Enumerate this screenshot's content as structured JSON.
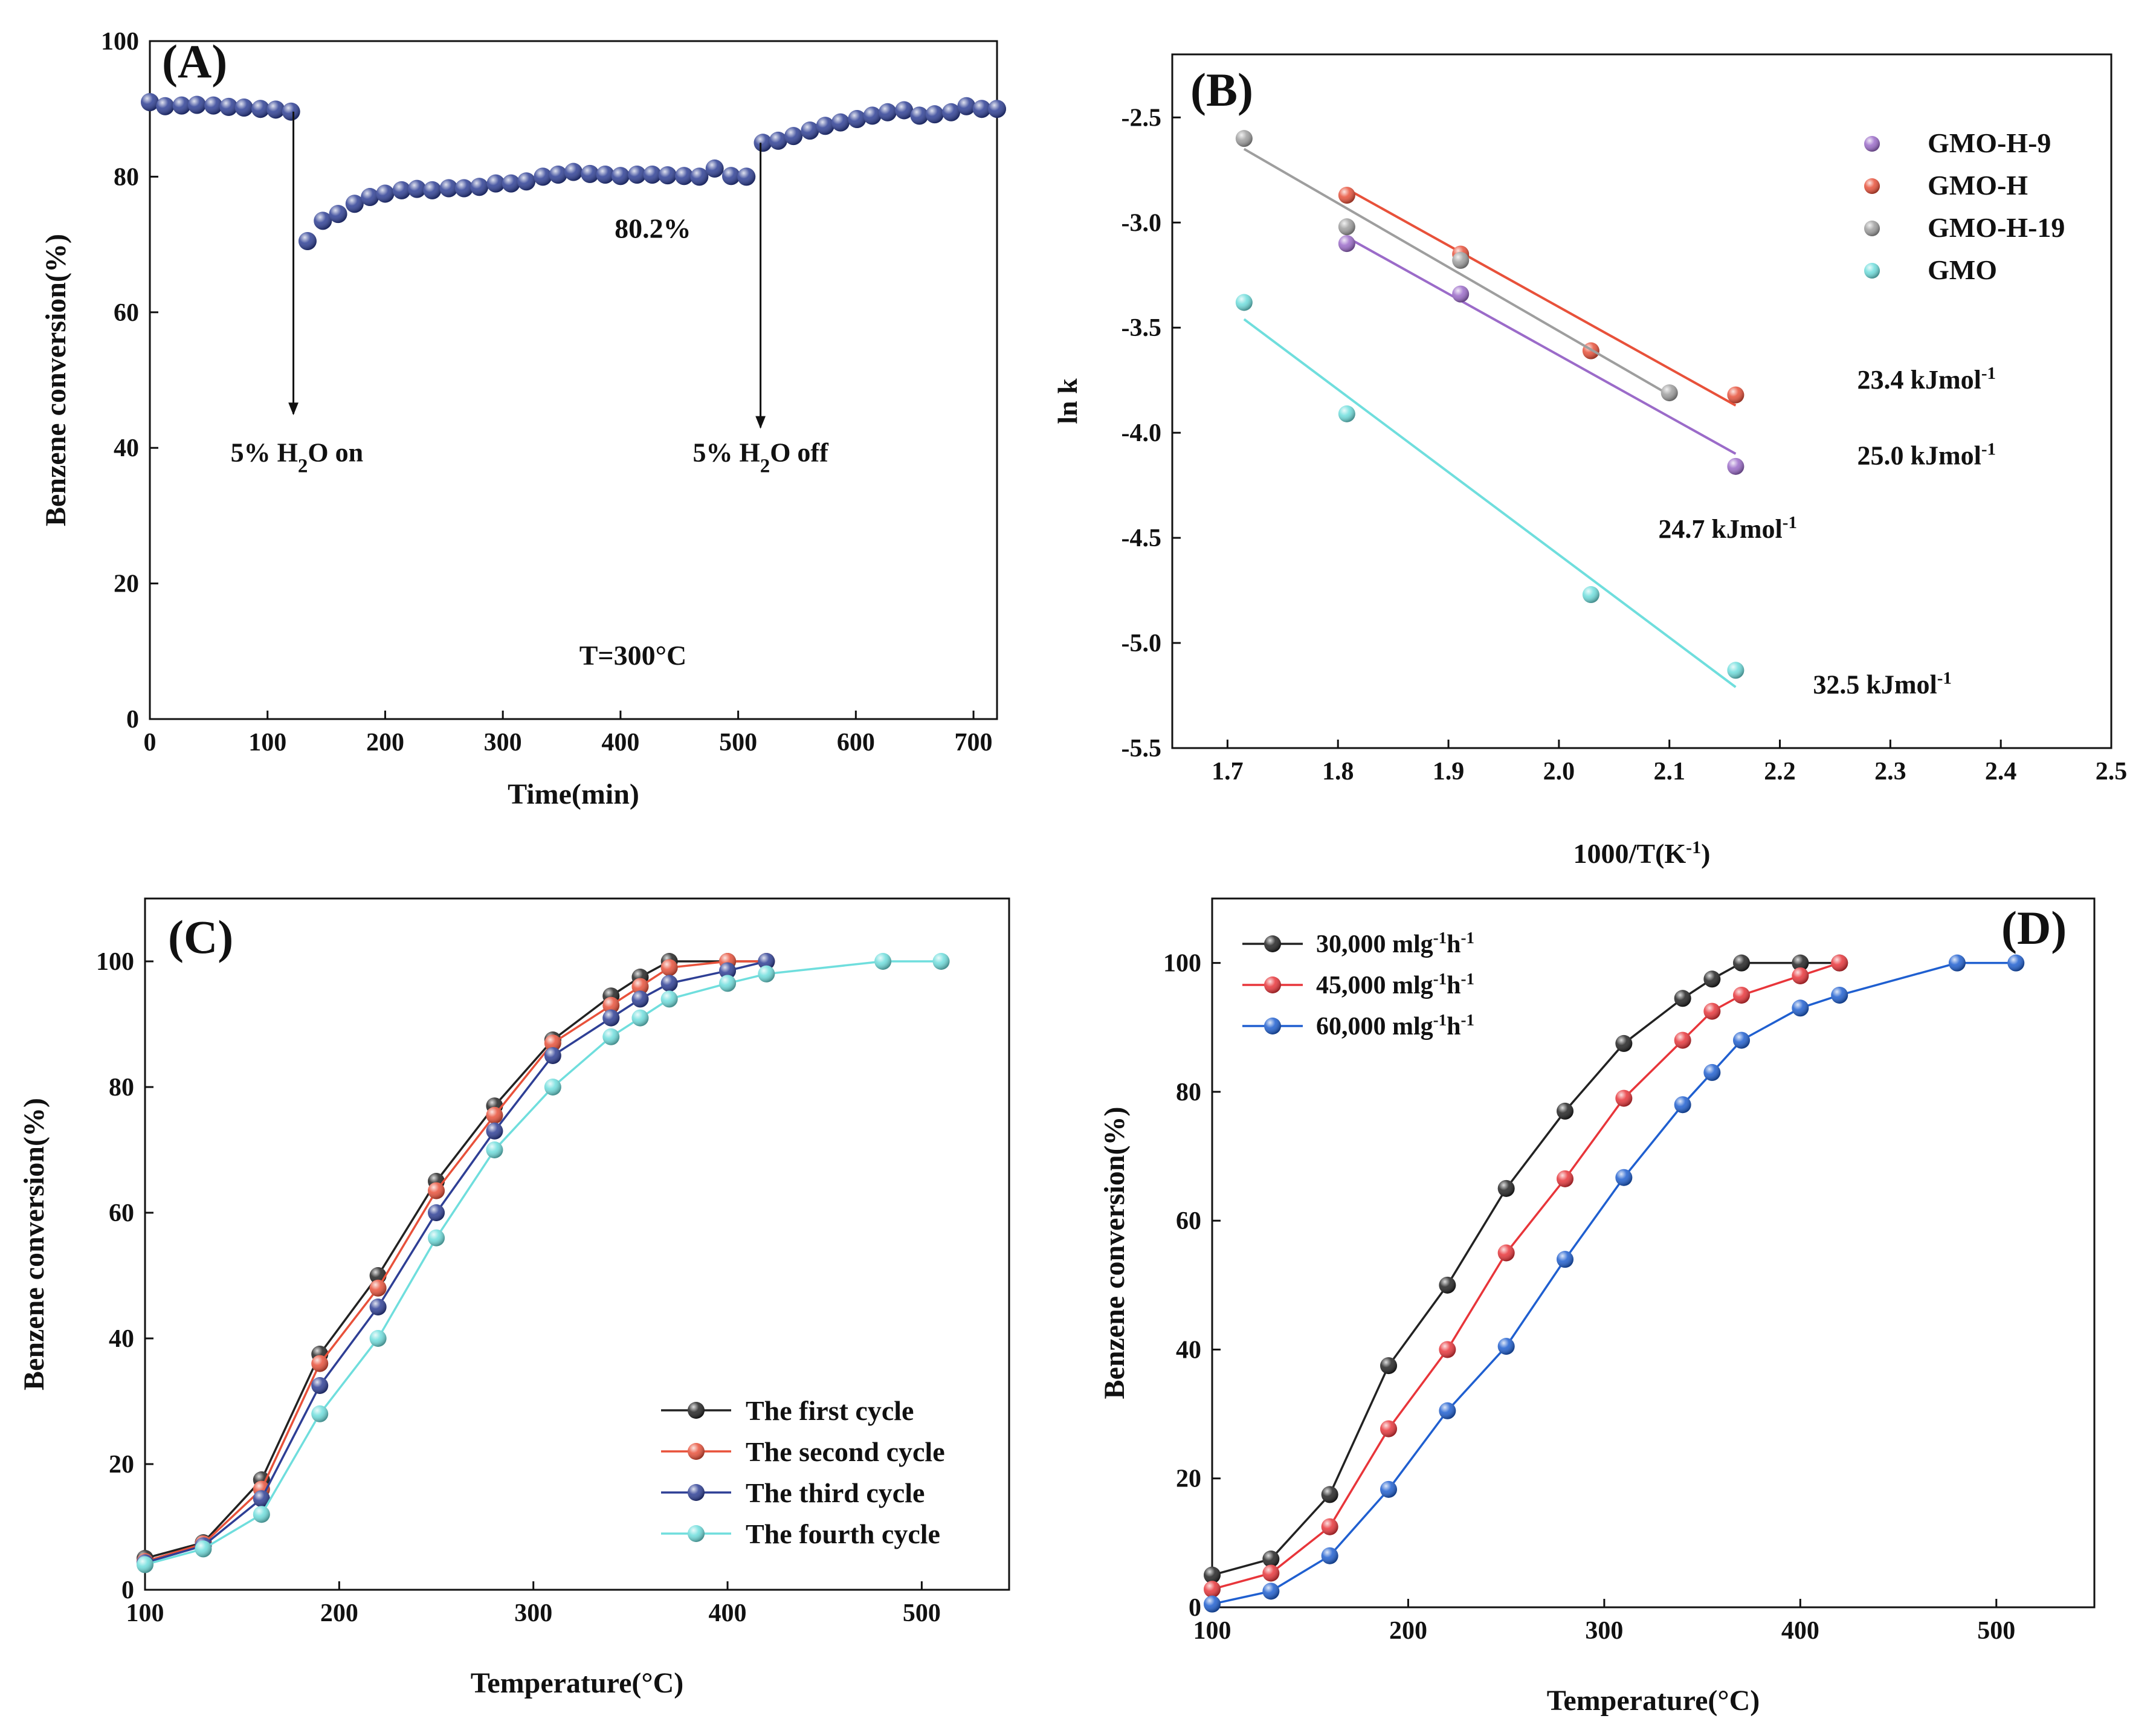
{
  "figure": {
    "panels": [
      "A",
      "B",
      "C",
      "D"
    ]
  },
  "chart_data": [
    {
      "id": "A",
      "type": "scatter",
      "panel_label": "(A)",
      "xlabel": "Time(min)",
      "ylabel": "Benzene conversion(%)",
      "xlim": [
        0,
        720
      ],
      "ylim": [
        0,
        100
      ],
      "xticks": [
        0,
        100,
        200,
        300,
        400,
        500,
        600,
        700
      ],
      "yticks": [
        0,
        20,
        40,
        60,
        80,
        100
      ],
      "marker_color": "#2e3f95",
      "series": [
        {
          "name": "Benzene conversion",
          "x": [
            0,
            13,
            27,
            40,
            54,
            67,
            80,
            94,
            107,
            120,
            134,
            147,
            160,
            174,
            187,
            200,
            214,
            227,
            240,
            254,
            267,
            280,
            294,
            307,
            320,
            334,
            347,
            360,
            374,
            387,
            400,
            414,
            427,
            440,
            454,
            467,
            480,
            494,
            507,
            521,
            534,
            547,
            561,
            574,
            587,
            601,
            614,
            627,
            641,
            654,
            667,
            681,
            694,
            707,
            720
          ],
          "y": [
            91.0,
            90.4,
            90.5,
            90.6,
            90.5,
            90.3,
            90.2,
            90.0,
            89.9,
            89.6,
            70.5,
            73.5,
            74.5,
            76.0,
            77.0,
            77.5,
            78.0,
            78.2,
            78.0,
            78.3,
            78.3,
            78.5,
            79.0,
            79.0,
            79.3,
            80.0,
            80.3,
            80.7,
            80.4,
            80.3,
            80.1,
            80.3,
            80.3,
            80.2,
            80.1,
            80.0,
            81.2,
            80.1,
            80.0,
            85.0,
            85.3,
            86.0,
            86.8,
            87.5,
            88.0,
            88.5,
            89.0,
            89.5,
            89.8,
            89.0,
            89.2,
            89.5,
            90.4,
            90.0,
            90.0
          ]
        }
      ],
      "annotations": [
        {
          "id": "on",
          "text_pre": "5% H",
          "sub": "2",
          "text_post": "O on",
          "arrow_x": 122,
          "arrow_from_y": 89.6,
          "arrow_to_y": 45,
          "label_x": 125,
          "label_y": 38
        },
        {
          "id": "off",
          "text_pre": "5% H",
          "sub": "2",
          "text_post": "O off",
          "arrow_x": 519,
          "arrow_from_y": 85.0,
          "arrow_to_y": 43,
          "label_x": 519,
          "label_y": 38
        },
        {
          "id": "mean",
          "text": "80.2%",
          "x": 395,
          "y": 71,
          "color": "#2e3f95"
        },
        {
          "id": "temp",
          "text": "T=300°C",
          "x": 365,
          "y": 8
        }
      ]
    },
    {
      "id": "B",
      "type": "scatter",
      "panel_label": "(B)",
      "xlabel_pre": "1000/T(K",
      "xlabel_sup": "-1",
      "xlabel_post": ")",
      "ylabel": "ln k",
      "xlim": [
        1.65,
        2.5
      ],
      "ylim": [
        -5.5,
        -2.2
      ],
      "xticks": [
        1.7,
        1.8,
        1.9,
        2.0,
        2.1,
        2.2,
        2.3,
        2.4,
        2.5
      ],
      "yticks": [
        -5.5,
        -5.0,
        -4.5,
        -4.0,
        -3.5,
        -3.0,
        -2.5
      ],
      "series": [
        {
          "name": "GMO-H-9",
          "color": "#9b6bc9",
          "x": [
            1.808,
            1.911,
            2.16
          ],
          "y": [
            -3.1,
            -3.34,
            -4.16
          ],
          "fit": [
            [
              1.808,
              -3.07
            ],
            [
              2.16,
              -4.1
            ]
          ],
          "ea_pre": "24.7 kJmol",
          "ea_sup": "-1",
          "ea_x": 2.09,
          "ea_y": -4.5
        },
        {
          "name": "GMO-H",
          "color": "#e8513a",
          "x": [
            1.808,
            1.911,
            2.029,
            2.16
          ],
          "y": [
            -2.87,
            -3.15,
            -3.61,
            -3.82
          ],
          "fit": [
            [
              1.808,
              -2.84
            ],
            [
              2.16,
              -3.87
            ]
          ],
          "ea_pre": "23.4 kJmol",
          "ea_sup": "-1",
          "ea_x": 2.27,
          "ea_y": -3.79
        },
        {
          "name": "GMO-H-19",
          "color": "#9e9e9e",
          "x": [
            1.715,
            1.808,
            1.911,
            2.1
          ],
          "y": [
            -2.6,
            -3.02,
            -3.18,
            -3.81
          ],
          "fit": [
            [
              1.715,
              -2.65
            ],
            [
              2.1,
              -3.82
            ]
          ],
          "ea_pre": "25.0 kJmol",
          "ea_sup": "-1",
          "ea_x": 2.27,
          "ea_y": -4.15
        },
        {
          "name": "GMO",
          "color": "#6fdedd",
          "x": [
            1.715,
            1.808,
            2.029,
            2.16
          ],
          "y": [
            -3.38,
            -3.91,
            -4.77,
            -5.13
          ],
          "fit": [
            [
              1.715,
              -3.46
            ],
            [
              2.16,
              -5.21
            ]
          ],
          "ea_pre": "32.5 kJmol",
          "ea_sup": "-1",
          "ea_x": 2.23,
          "ea_y": -5.24
        }
      ],
      "legend": "top-right"
    },
    {
      "id": "C",
      "type": "line",
      "panel_label": "(C)",
      "xlabel": "Temperature(°C)",
      "ylabel": "Benzene conversion(%)",
      "xlim": [
        100,
        545
      ],
      "ylim": [
        0,
        110
      ],
      "xticks": [
        100,
        200,
        300,
        400,
        500
      ],
      "yticks": [
        0,
        20,
        40,
        60,
        80,
        100
      ],
      "series": [
        {
          "name": "The first cycle",
          "color": "#222222",
          "x": [
            100,
            130,
            160,
            190,
            220,
            250,
            280,
            310,
            340,
            355,
            370,
            400,
            420
          ],
          "y": [
            5,
            7.5,
            17.5,
            37.5,
            50,
            65,
            77,
            87.5,
            94.5,
            97.5,
            100,
            100,
            100
          ]
        },
        {
          "name": "The second cycle",
          "color": "#e8513a",
          "x": [
            100,
            130,
            160,
            190,
            220,
            250,
            280,
            310,
            340,
            355,
            370,
            400,
            420
          ],
          "y": [
            4.5,
            7.3,
            16,
            36,
            48,
            63.5,
            75.5,
            87,
            93,
            96,
            99,
            100,
            100
          ]
        },
        {
          "name": "The third cycle",
          "color": "#2e3f95",
          "x": [
            100,
            130,
            160,
            190,
            220,
            250,
            280,
            310,
            340,
            355,
            370,
            400,
            420
          ],
          "y": [
            4.3,
            7,
            14.5,
            32.5,
            45,
            60,
            73,
            85,
            91,
            94,
            96.5,
            98.5,
            100
          ]
        },
        {
          "name": "The fourth cycle",
          "color": "#6fdedd",
          "x": [
            100,
            130,
            160,
            190,
            220,
            250,
            280,
            310,
            340,
            355,
            370,
            400,
            420,
            480,
            510
          ],
          "y": [
            4,
            6.5,
            12,
            28,
            40,
            56,
            70,
            80,
            88,
            91,
            94,
            96.5,
            98,
            100,
            100
          ]
        }
      ],
      "legend": "bottom-right"
    },
    {
      "id": "D",
      "type": "line",
      "panel_label": "(D)",
      "xlabel": "Temperature(°C)",
      "ylabel": "Benzene conversion(%)",
      "xlim": [
        100,
        550
      ],
      "ylim": [
        0,
        110
      ],
      "xticks": [
        100,
        200,
        300,
        400,
        500
      ],
      "yticks": [
        0,
        20,
        40,
        60,
        80,
        100
      ],
      "series": [
        {
          "name_pre": "30,000 mlg",
          "name_sup1": "-1",
          "name_mid": "h",
          "name_sup2": "-1",
          "color": "#222222",
          "x": [
            100,
            130,
            160,
            190,
            220,
            250,
            280,
            310,
            340,
            355,
            370,
            400,
            420
          ],
          "y": [
            5,
            7.5,
            17.5,
            37.5,
            50,
            65,
            77,
            87.5,
            94.5,
            97.5,
            100,
            100,
            100
          ]
        },
        {
          "name_pre": "45,000 mlg",
          "name_sup1": "-1",
          "name_mid": "h",
          "name_sup2": "-1",
          "color": "#e8353a",
          "x": [
            100,
            130,
            160,
            190,
            220,
            250,
            280,
            310,
            340,
            355,
            370,
            400,
            420
          ],
          "y": [
            2.8,
            5.3,
            12.5,
            27.7,
            40,
            55,
            66.5,
            79,
            88,
            92.5,
            95,
            98,
            100
          ]
        },
        {
          "name_pre": "60,000 mlg",
          "name_sup1": "-1",
          "name_mid": "h",
          "name_sup2": "-1",
          "color": "#1f5fd0",
          "x": [
            100,
            130,
            160,
            190,
            220,
            250,
            280,
            310,
            340,
            355,
            370,
            400,
            420,
            480,
            510
          ],
          "y": [
            0.5,
            2.5,
            8,
            18.3,
            30.5,
            40.5,
            54,
            66.7,
            78,
            83,
            88,
            93,
            95,
            100,
            100
          ]
        }
      ],
      "legend": "top-left"
    }
  ]
}
